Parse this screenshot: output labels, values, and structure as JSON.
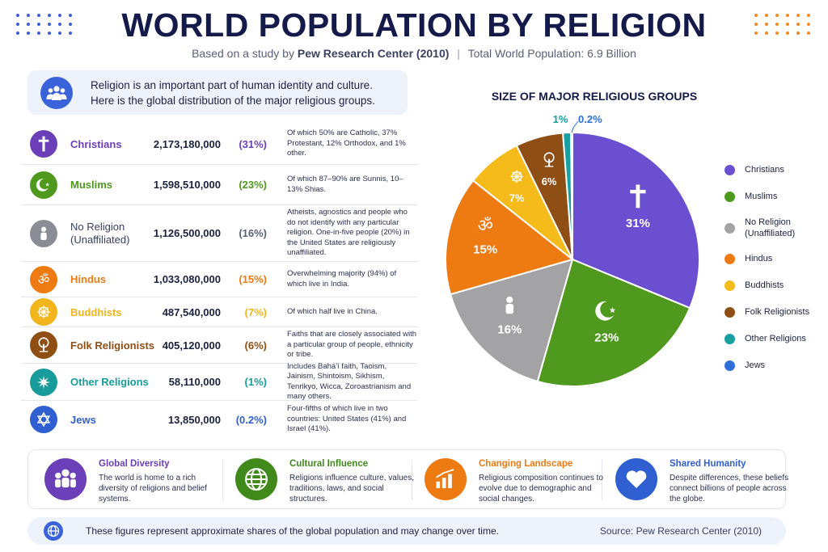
{
  "header": {
    "title": "WORLD POPULATION BY RELIGION",
    "subtitle_prefix": "Based on a study by",
    "subtitle_source": "Pew Research Center (2010)",
    "subtitle_total": "Total World Population: 6.9 Billion"
  },
  "intro": {
    "line1": "Religion is an important part of human identity and culture.",
    "line2": "Here is the global distribution of the major religious groups."
  },
  "table": {
    "rows": [
      {
        "name": "Christians",
        "count": "2,173,180,000",
        "pct": "(31%)",
        "note": "Of which 50% are Catholic, 37% Protestant, 12% Orthodox, and 1% other.",
        "color": "#6b3fb8",
        "icon": "cross-icon"
      },
      {
        "name": "Muslims",
        "count": "1,598,510,000",
        "pct": "(23%)",
        "note": "Of which 87–90% are Sunnis, 10–13% Shias.",
        "color": "#4f9a1e",
        "icon": "crescent-star-icon"
      },
      {
        "name": "No Religion\n(Unaffiliated)",
        "count": "1,126,500,000",
        "pct": "(16%)",
        "note": "Atheists, agnostics and people who do not identify with any particular religion. One-in-five people (20%) in the United States are religiously unaffiliated.",
        "color": "#8a8d96",
        "icon": "person-icon"
      },
      {
        "name": "Hindus",
        "count": "1,033,080,000",
        "pct": "(15%)",
        "note": "Overwhelming majority (94%) of which live in India.",
        "color": "#ee7a12",
        "icon": "om-icon"
      },
      {
        "name": "Buddhists",
        "count": "487,540,000",
        "pct": "(7%)",
        "note": "Of which half live in China.",
        "color": "#f3b51c",
        "icon": "dharma-wheel-icon"
      },
      {
        "name": "Folk Religionists",
        "count": "405,120,000",
        "pct": "(6%)",
        "note": "Faiths that are closely associated with a particular group of people, ethnicity or tribe.",
        "color": "#8f4f14",
        "icon": "tree-icon"
      },
      {
        "name": "Other Religions",
        "count": "58,110,000",
        "pct": "(1%)",
        "note": "Includes Bahá'í faith, Taoism, Jainism, Shintoism, Sikhism, Tenrikyo, Wicca, Zoroastrianism and many others.",
        "color": "#189b9b",
        "icon": "star-icon"
      },
      {
        "name": "Jews",
        "count": "13,850,000",
        "pct": "(0.2%)",
        "note": "Four-fifths of which live in two countries: United States (41%) and Israel (41%).",
        "color": "#2f5fd0",
        "icon": "star-of-david-icon"
      }
    ]
  },
  "chart_data": {
    "type": "pie",
    "title": "SIZE OF MAJOR RELIGIOUS GROUPS",
    "categories": [
      "Christians",
      "Muslims",
      "No Religion (Unaffiliated)",
      "Hindus",
      "Buddhists",
      "Folk Religionists",
      "Other Religions",
      "Jews"
    ],
    "legend_labels": [
      "Christians",
      "Muslims",
      "No Religion\n(Unaffiliated)",
      "Hindus",
      "Buddhists",
      "Folk Religionists",
      "Other Religions",
      "Jews"
    ],
    "values": [
      31,
      23,
      16,
      15,
      7,
      6,
      1,
      0.2
    ],
    "labels": [
      "31%",
      "23%",
      "16%",
      "15%",
      "7%",
      "6%",
      "1%",
      "0.2%"
    ],
    "colors": [
      "#6a4fd0",
      "#4f9a1e",
      "#a3a3a6",
      "#ee7a12",
      "#f5bb1a",
      "#8f4f14",
      "#18a0a0",
      "#2f6fd8"
    ],
    "legend_position": "right"
  },
  "features": [
    {
      "title": "Global Diversity",
      "body": "The world is home to a rich diversity of religions and belief systems.",
      "color": "#6b3fb8",
      "icon": "people-group-icon"
    },
    {
      "title": "Cultural Influence",
      "body": "Religions influence culture, values, traditions, laws, and social structures.",
      "color": "#3f8a1a",
      "icon": "globe-icon"
    },
    {
      "title": "Changing Landscape",
      "body": "Religious composition continues to evolve due to demographic and social changes.",
      "color": "#ee7a12",
      "icon": "bar-chart-icon"
    },
    {
      "title": "Shared Humanity",
      "body": "Despite differences, these beliefs connect billions of people across the globe.",
      "color": "#2f5fd0",
      "icon": "heart-hands-icon"
    }
  ],
  "footer": {
    "note": "These figures represent approximate shares of the global population and may change over time.",
    "source": "Source: Pew Research Center (2010)"
  }
}
